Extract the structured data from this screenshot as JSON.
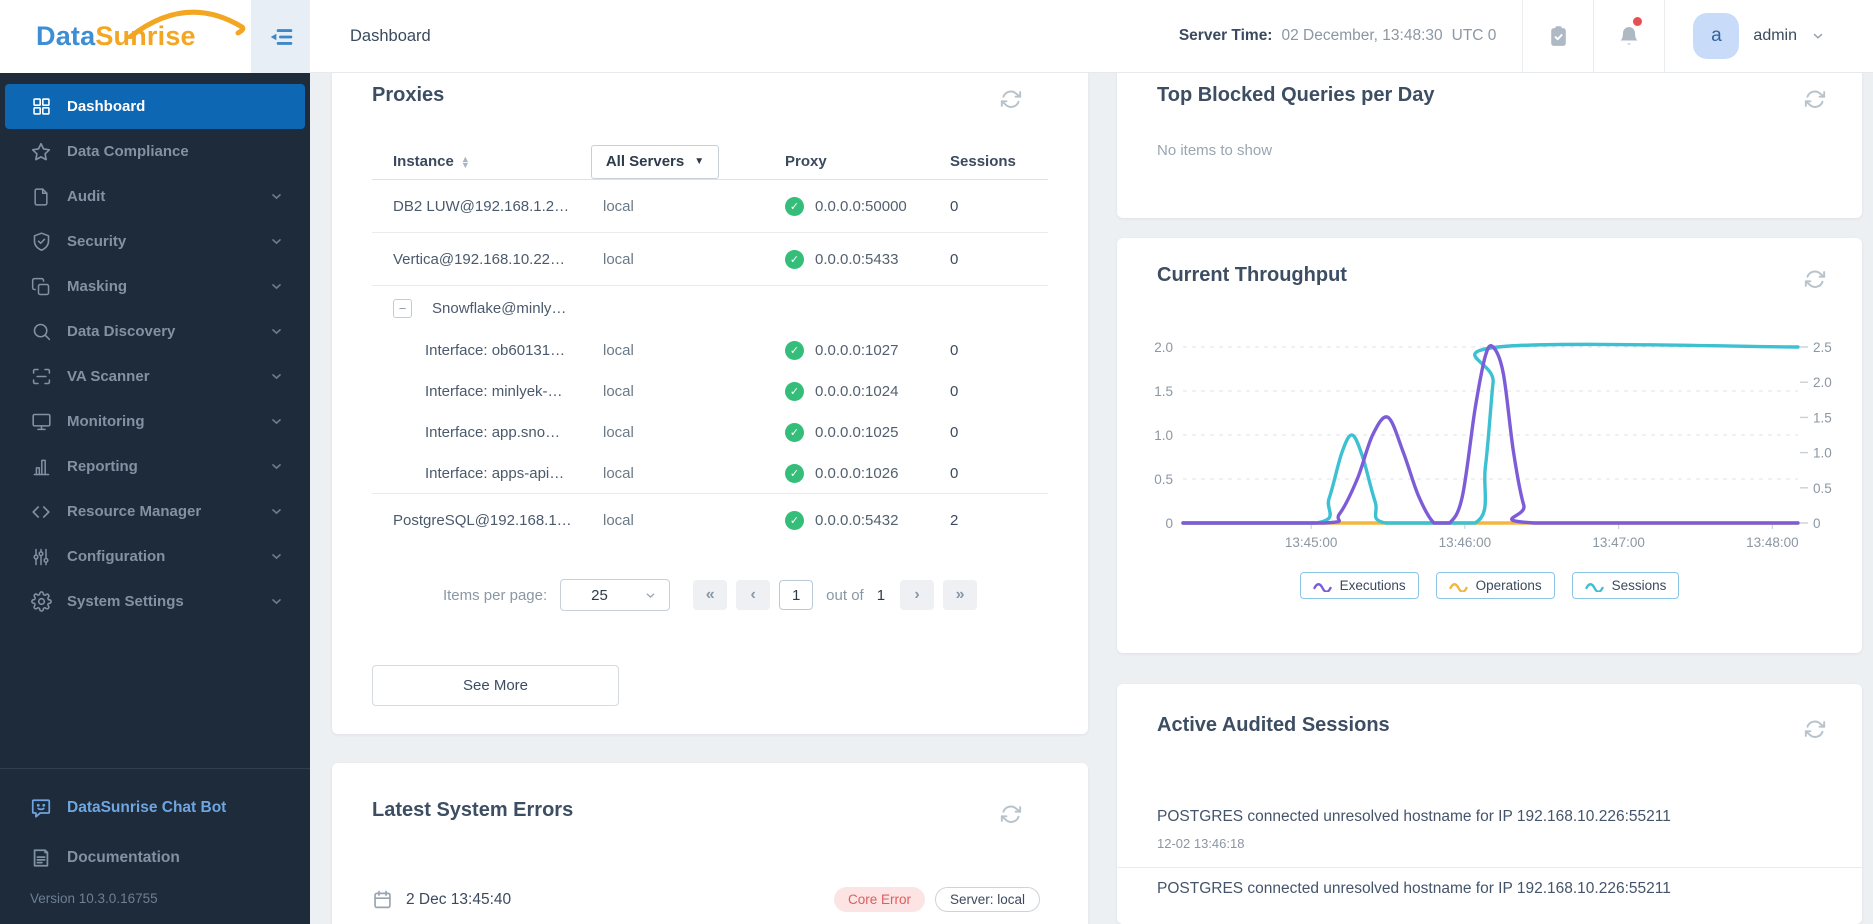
{
  "colors": {
    "accent_blue": "#0e67b2",
    "green_ok": "#35bd7a",
    "purple": "#7d5cd8",
    "cyan": "#3ec0d3",
    "orange": "#f2b73f",
    "error_red": "#e05c5c"
  },
  "logo": {
    "part1": "Data",
    "part2": "Sunrise"
  },
  "sidebar": {
    "items": [
      {
        "label": "Dashboard",
        "icon": "dashboard",
        "active": true,
        "expandable": false
      },
      {
        "label": "Data Compliance",
        "icon": "star",
        "active": false,
        "expandable": false
      },
      {
        "label": "Audit",
        "icon": "file",
        "active": false,
        "expandable": true
      },
      {
        "label": "Security",
        "icon": "shield",
        "active": false,
        "expandable": true
      },
      {
        "label": "Masking",
        "icon": "masking",
        "active": false,
        "expandable": true
      },
      {
        "label": "Data Discovery",
        "icon": "search",
        "active": false,
        "expandable": true
      },
      {
        "label": "VA Scanner",
        "icon": "scanner",
        "active": false,
        "expandable": true
      },
      {
        "label": "Monitoring",
        "icon": "monitor",
        "active": false,
        "expandable": true
      },
      {
        "label": "Reporting",
        "icon": "report",
        "active": false,
        "expandable": true
      },
      {
        "label": "Resource Manager",
        "icon": "code",
        "active": false,
        "expandable": true
      },
      {
        "label": "Configuration",
        "icon": "sliders",
        "active": false,
        "expandable": true
      },
      {
        "label": "System Settings",
        "icon": "gear",
        "active": false,
        "expandable": true
      }
    ],
    "chatbot_label": "DataSunrise Chat Bot",
    "documentation_label": "Documentation",
    "version": "Version 10.3.0.16755"
  },
  "header": {
    "breadcrumb": "Dashboard",
    "server_time_label": "Server Time:",
    "server_time_value": "02 December, 13:48:30",
    "server_time_zone": "UTC 0",
    "user": {
      "initial": "a",
      "name": "admin"
    }
  },
  "proxies": {
    "title": "Proxies",
    "columns": {
      "instance": "Instance",
      "server_filter": "All Servers",
      "proxy": "Proxy",
      "sessions": "Sessions"
    },
    "rows": [
      {
        "type": "row",
        "name": "DB2 LUW@192.168.1.2…",
        "server": "local",
        "proxy": "0.0.0.0:50000",
        "sessions": "0"
      },
      {
        "type": "row",
        "name": "Vertica@192.168.10.22…",
        "server": "local",
        "proxy": "0.0.0.0:5433",
        "sessions": "0"
      },
      {
        "type": "group",
        "name": "Snowflake@minly…",
        "server": "",
        "proxy": "",
        "sessions": ""
      },
      {
        "type": "child",
        "name": "Interface: ob60131…",
        "server": "local",
        "proxy": "0.0.0.0:1027",
        "sessions": "0"
      },
      {
        "type": "child",
        "name": "Interface: minlyek-…",
        "server": "local",
        "proxy": "0.0.0.0:1024",
        "sessions": "0"
      },
      {
        "type": "child",
        "name": "Interface: app.sno…",
        "server": "local",
        "proxy": "0.0.0.0:1025",
        "sessions": "0"
      },
      {
        "type": "child",
        "name": "Interface: apps-api…",
        "server": "local",
        "proxy": "0.0.0.0:1026",
        "sessions": "0"
      },
      {
        "type": "row",
        "name": "PostgreSQL@192.168.1…",
        "server": "local",
        "proxy": "0.0.0.0:5432",
        "sessions": "2"
      }
    ],
    "pagination": {
      "items_per_page_label": "Items per page:",
      "per_page": "25",
      "first": "«",
      "prev": "‹",
      "next": "›",
      "last": "»",
      "page": "1",
      "out_of_label": "out of",
      "total_pages": "1"
    },
    "see_more_label": "See More"
  },
  "top_blocked": {
    "title": "Top Blocked Queries per Day",
    "empty_text": "No items to show"
  },
  "throughput": {
    "title": "Current Throughput"
  },
  "chart_data": {
    "type": "line",
    "title": "Current Throughput",
    "x_range": [
      0,
      240
    ],
    "x_ticks": [
      {
        "t": 50,
        "label": "13:45:00"
      },
      {
        "t": 110,
        "label": "13:46:00"
      },
      {
        "t": 170,
        "label": "13:47:00"
      },
      {
        "t": 230,
        "label": "13:48:00"
      }
    ],
    "left_axis": {
      "max": 2.0,
      "ticks": [
        2.0,
        1.5,
        1.0,
        0.5,
        0
      ]
    },
    "right_axis": {
      "max": 2.5,
      "ticks": [
        2.5,
        2.0,
        1.5,
        1.0,
        0.5,
        0
      ]
    },
    "grid": "dashed-horizontal",
    "legend_position": "bottom",
    "series": [
      {
        "name": "Operations",
        "color": "#f2b73f",
        "axis": "left",
        "points": [
          [
            0,
            0
          ],
          [
            240,
            0
          ]
        ]
      },
      {
        "name": "Sessions",
        "color": "#3ec0d3",
        "axis": "right",
        "points": [
          [
            0,
            0
          ],
          [
            52,
            0
          ],
          [
            57,
            0.35
          ],
          [
            62,
            1.0
          ],
          [
            66,
            1.25
          ],
          [
            70,
            0.95
          ],
          [
            75,
            0.3
          ],
          [
            79,
            0
          ],
          [
            114,
            0
          ],
          [
            118,
            0.8
          ],
          [
            121,
            2.0
          ],
          [
            123,
            2.5
          ],
          [
            240,
            2.5
          ]
        ]
      },
      {
        "name": "Executions",
        "color": "#7d5cd8",
        "axis": "left",
        "points": [
          [
            0,
            0
          ],
          [
            55,
            0
          ],
          [
            61,
            0.1
          ],
          [
            68,
            0.5
          ],
          [
            74,
            1.0
          ],
          [
            80,
            1.2
          ],
          [
            86,
            0.8
          ],
          [
            92,
            0.3
          ],
          [
            98,
            0
          ],
          [
            104,
            0
          ],
          [
            109,
            0.3
          ],
          [
            114,
            1.3
          ],
          [
            118,
            1.9
          ],
          [
            121,
            2.0
          ],
          [
            125,
            1.7
          ],
          [
            129,
            0.8
          ],
          [
            133,
            0.2
          ],
          [
            137,
            0
          ],
          [
            240,
            0
          ]
        ]
      }
    ],
    "legend_order": [
      "Executions",
      "Operations",
      "Sessions"
    ]
  },
  "active_sessions": {
    "title": "Active Audited Sessions",
    "items": [
      {
        "text": "POSTGRES connected unresolved hostname for IP 192.168.10.226:55211",
        "time": "12-02 13:46:18"
      },
      {
        "text": "POSTGRES connected unresolved hostname for IP 192.168.10.226:55211",
        "time": ""
      }
    ]
  },
  "system_errors": {
    "title": "Latest System Errors",
    "entries": [
      {
        "date": "2 Dec 13:45:40",
        "error_badge": "Core Error",
        "server_badge": "Server: local"
      }
    ]
  }
}
